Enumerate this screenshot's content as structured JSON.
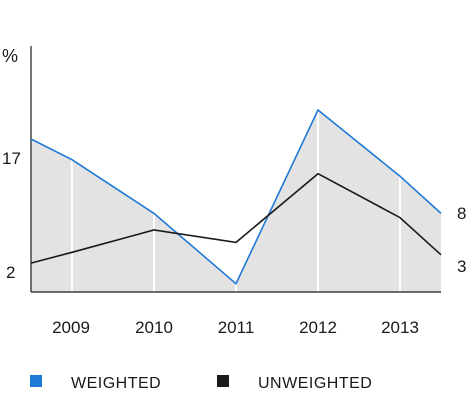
{
  "chart_data": {
    "type": "line",
    "ylabel": "%",
    "y_tick_labels": [
      "17",
      "2"
    ],
    "end_labels": [
      "8",
      "3"
    ],
    "x_tick_labels": [
      "2009",
      "2010",
      "2011",
      "2012",
      "2013"
    ],
    "x": [
      2008.5,
      2009,
      2010,
      2011,
      2012,
      2013,
      2013.5
    ],
    "series": [
      {
        "name": "WEIGHTED",
        "color": "#1f7ad6",
        "values": [
          17.0,
          14.5,
          8.0,
          -0.5,
          20.5,
          12.5,
          8.0
        ]
      },
      {
        "name": "UNWEIGHTED",
        "color": "#1a1a1a",
        "values": [
          2.0,
          3.3,
          6.0,
          4.5,
          12.8,
          7.5,
          3.0
        ]
      }
    ],
    "ylim": [
      -1.5,
      28
    ],
    "xlim": [
      2008.5,
      2013.5
    ],
    "grid": "vertical",
    "legend": "bottom-left",
    "colors": {
      "fill": "#e3e3e3",
      "grid": "#ffffff",
      "axis": "#1a1a1a"
    }
  }
}
